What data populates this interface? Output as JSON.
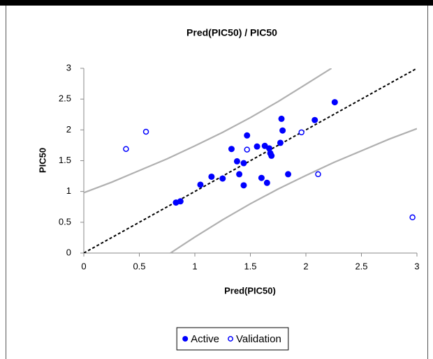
{
  "chart_data": {
    "type": "scatter",
    "title": "Pred(PIC50) / PIC50",
    "x_label": "Pred(PIC50)",
    "y_label": "PIC50",
    "xlim": [
      0,
      3
    ],
    "ylim": [
      0,
      3
    ],
    "xticks": [
      0,
      0.5,
      1,
      1.5,
      2,
      2.5,
      3
    ],
    "yticks": [
      0,
      0.5,
      1,
      1.5,
      2,
      2.5,
      3
    ],
    "legend": "bottom",
    "series": [
      {
        "name": "Active",
        "color": "#0000ff",
        "filled": true,
        "x": [
          0.83,
          0.87,
          1.05,
          1.15,
          1.25,
          1.33,
          1.38,
          1.4,
          1.44,
          1.44,
          1.47,
          1.56,
          1.6,
          1.63,
          1.65,
          1.67,
          1.68,
          1.69,
          1.77,
          1.78,
          1.79,
          1.84,
          2.08,
          2.26
        ],
        "values": [
          0.82,
          0.84,
          1.11,
          1.24,
          1.21,
          1.69,
          1.49,
          1.28,
          1.46,
          1.1,
          1.91,
          1.73,
          1.22,
          1.74,
          1.14,
          1.7,
          1.62,
          1.58,
          1.79,
          2.18,
          1.99,
          1.28,
          2.16,
          2.45
        ]
      },
      {
        "name": "Validation",
        "color": "#0000ff",
        "filled": false,
        "x": [
          0.38,
          0.56,
          1.47,
          1.96,
          2.11,
          2.96
        ],
        "values": [
          1.69,
          1.97,
          1.68,
          1.96,
          1.28,
          0.58
        ]
      }
    ],
    "curves": [
      {
        "color": "#b0b0b0",
        "dash": false,
        "x": [
          0,
          0.25,
          0.5,
          0.75,
          1,
          1.25,
          1.5,
          1.75,
          2,
          2.23
        ],
        "values": [
          0.98,
          1.15,
          1.34,
          1.53,
          1.74,
          1.96,
          2.2,
          2.46,
          2.74,
          3
        ]
      },
      {
        "color": "#b0b0b0",
        "dash": false,
        "x": [
          0.78,
          1,
          1.25,
          1.5,
          1.75,
          2,
          2.25,
          2.5,
          2.75,
          3
        ],
        "values": [
          0,
          0.26,
          0.54,
          0.8,
          1.04,
          1.26,
          1.47,
          1.66,
          1.85,
          2.02
        ]
      },
      {
        "color": "#000000",
        "dash": true,
        "x": [
          0,
          3
        ],
        "values": [
          0,
          3
        ]
      }
    ]
  }
}
